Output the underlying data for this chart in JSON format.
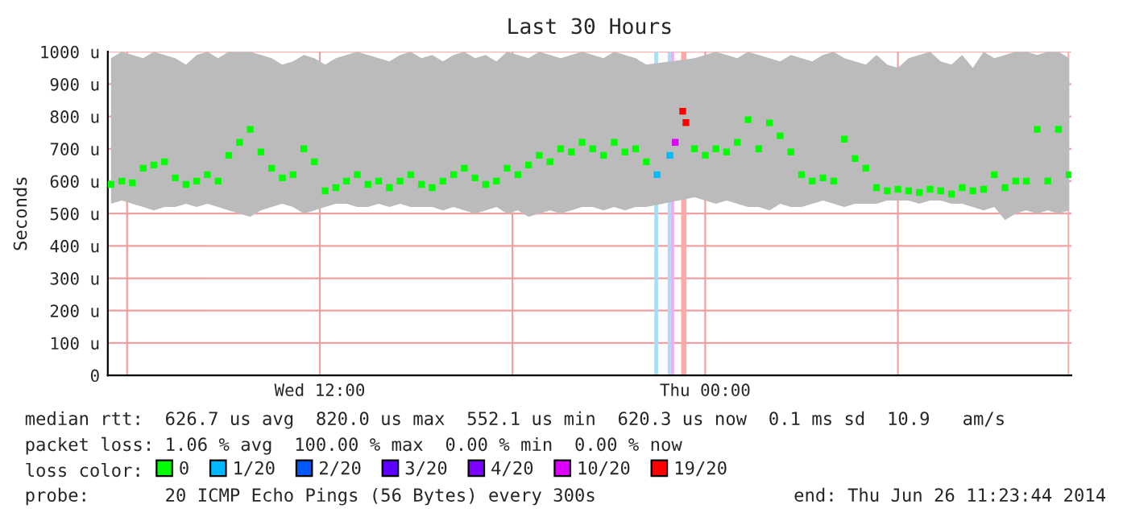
{
  "chart_data": {
    "type": "scatter",
    "title": "Last 30 Hours",
    "ylabel": "Seconds",
    "xlim": [
      "2014-06-25T05:24",
      "2014-06-26T11:24"
    ],
    "xticks": [
      {
        "value": "2014-06-25T06:00",
        "label": null
      },
      {
        "value": "2014-06-25T12:00",
        "label": "Wed 12:00"
      },
      {
        "value": "2014-06-25T18:00",
        "label": null
      },
      {
        "value": "2014-06-26T00:00",
        "label": "Thu 00:00"
      },
      {
        "value": "2014-06-26T06:00",
        "label": null
      }
    ],
    "ylim": [
      0,
      1000
    ],
    "yticks": [
      0,
      {
        "value": 100,
        "label": "100 u"
      },
      {
        "value": 200,
        "label": "200 u"
      },
      {
        "value": 300,
        "label": "300 u"
      },
      {
        "value": 400,
        "label": "400 u"
      },
      {
        "value": 500,
        "label": "500 u"
      },
      {
        "value": 600,
        "label": "600 u"
      },
      {
        "value": 700,
        "label": "700 u"
      },
      {
        "value": 800,
        "label": "800 u"
      },
      {
        "value": 900,
        "label": "900 u"
      },
      {
        "value": 1000,
        "label": "1000 u"
      }
    ],
    "grid": true,
    "marker": "square",
    "legend": "bottom",
    "legend_title": "loss color:",
    "series": [
      {
        "name": "0",
        "color": "#00ff00",
        "x": [
          "2014-06-25T05:30",
          "2014-06-25T05:50",
          "2014-06-25T06:10",
          "2014-06-25T06:30",
          "2014-06-25T06:50",
          "2014-06-25T07:10",
          "2014-06-25T07:30",
          "2014-06-25T07:50",
          "2014-06-25T08:10",
          "2014-06-25T08:30",
          "2014-06-25T08:50",
          "2014-06-25T09:10",
          "2014-06-25T09:30",
          "2014-06-25T09:50",
          "2014-06-25T10:10",
          "2014-06-25T10:30",
          "2014-06-25T10:50",
          "2014-06-25T11:10",
          "2014-06-25T11:30",
          "2014-06-25T11:50",
          "2014-06-25T12:10",
          "2014-06-25T12:30",
          "2014-06-25T12:50",
          "2014-06-25T13:10",
          "2014-06-25T13:30",
          "2014-06-25T13:50",
          "2014-06-25T14:10",
          "2014-06-25T14:30",
          "2014-06-25T14:50",
          "2014-06-25T15:10",
          "2014-06-25T15:30",
          "2014-06-25T15:50",
          "2014-06-25T16:10",
          "2014-06-25T16:30",
          "2014-06-25T16:50",
          "2014-06-25T17:10",
          "2014-06-25T17:30",
          "2014-06-25T17:50",
          "2014-06-25T18:10",
          "2014-06-25T18:30",
          "2014-06-25T18:50",
          "2014-06-25T19:10",
          "2014-06-25T19:30",
          "2014-06-25T19:50",
          "2014-06-25T20:10",
          "2014-06-25T20:30",
          "2014-06-25T20:50",
          "2014-06-25T21:10",
          "2014-06-25T21:30",
          "2014-06-25T21:50",
          "2014-06-25T22:10",
          "2014-06-25T23:40",
          "2014-06-26T00:00",
          "2014-06-26T00:20",
          "2014-06-26T00:40",
          "2014-06-26T01:00",
          "2014-06-26T01:20",
          "2014-06-26T01:40",
          "2014-06-26T02:00",
          "2014-06-26T02:20",
          "2014-06-26T02:40",
          "2014-06-26T03:00",
          "2014-06-26T03:20",
          "2014-06-26T03:40",
          "2014-06-26T04:00",
          "2014-06-26T04:20",
          "2014-06-26T04:40",
          "2014-06-26T05:00",
          "2014-06-26T05:20",
          "2014-06-26T05:40",
          "2014-06-26T06:00",
          "2014-06-26T06:20",
          "2014-06-26T06:40",
          "2014-06-26T07:00",
          "2014-06-26T07:20",
          "2014-06-26T07:40",
          "2014-06-26T08:00",
          "2014-06-26T08:20",
          "2014-06-26T08:40",
          "2014-06-26T09:00",
          "2014-06-26T09:20",
          "2014-06-26T09:40",
          "2014-06-26T10:00",
          "2014-06-26T10:20",
          "2014-06-26T10:40",
          "2014-06-26T11:00",
          "2014-06-26T11:20"
        ],
        "values": [
          590,
          600,
          595,
          640,
          650,
          660,
          610,
          590,
          600,
          620,
          600,
          680,
          720,
          760,
          690,
          640,
          610,
          620,
          700,
          660,
          570,
          580,
          600,
          620,
          590,
          600,
          580,
          600,
          620,
          590,
          580,
          600,
          620,
          640,
          610,
          590,
          600,
          640,
          620,
          650,
          680,
          660,
          700,
          690,
          720,
          700,
          680,
          720,
          690,
          700,
          660,
          700,
          680,
          700,
          690,
          720,
          790,
          700,
          780,
          740,
          690,
          620,
          600,
          610,
          600,
          730,
          670,
          640,
          580,
          570,
          575,
          570,
          565,
          575,
          570,
          560,
          580,
          570,
          575,
          620,
          580,
          600,
          600,
          760,
          600,
          760,
          620
        ],
        "lower": [
          530,
          540,
          530,
          520,
          510,
          520,
          520,
          530,
          520,
          530,
          520,
          510,
          500,
          490,
          510,
          520,
          530,
          520,
          500,
          510,
          520,
          530,
          530,
          520,
          520,
          530,
          520,
          530,
          520,
          520,
          520,
          510,
          520,
          510,
          500,
          510,
          520,
          500,
          510,
          490,
          500,
          510,
          500,
          510,
          520,
          520,
          510,
          520,
          510,
          520,
          520,
          550,
          540,
          530,
          540,
          530,
          520,
          520,
          510,
          530,
          520,
          520,
          530,
          540,
          530,
          520,
          530,
          530,
          530,
          540,
          540,
          540,
          530,
          540,
          540,
          530,
          530,
          520,
          510,
          520,
          480,
          500,
          510,
          500,
          510,
          500,
          510
        ],
        "upper": [
          980,
          1000,
          990,
          980,
          1000,
          990,
          980,
          960,
          990,
          1000,
          980,
          1000,
          1000,
          1000,
          990,
          980,
          960,
          970,
          990,
          980,
          960,
          980,
          990,
          1000,
          990,
          980,
          970,
          990,
          1000,
          980,
          990,
          970,
          990,
          1000,
          980,
          990,
          970,
          1000,
          990,
          980,
          1000,
          990,
          980,
          990,
          1000,
          990,
          980,
          1000,
          990,
          980,
          960,
          980,
          990,
          1000,
          990,
          980,
          1000,
          990,
          980,
          970,
          990,
          980,
          970,
          990,
          1000,
          980,
          970,
          960,
          990,
          960,
          950,
          980,
          990,
          1000,
          970,
          960,
          990,
          950,
          1000,
          980,
          990,
          1000,
          1000,
          990,
          1000,
          1000,
          980
        ]
      },
      {
        "name": "1/20",
        "color": "#00b8ff",
        "x": [
          "2014-06-25T22:30",
          "2014-06-25T22:54"
        ],
        "values": [
          620,
          680
        ]
      },
      {
        "name": "2/20",
        "color": "#0059ff"
      },
      {
        "name": "3/20",
        "color": "#5e00ff"
      },
      {
        "name": "4/20",
        "color": "#7e00ff"
      },
      {
        "name": "10/20",
        "color": "#dd00ff",
        "x": [
          "2014-06-25T23:04"
        ],
        "values": [
          720
        ]
      },
      {
        "name": "19/20",
        "color": "#ff0000",
        "x": [
          "2014-06-25T23:18",
          "2014-06-25T23:24"
        ],
        "values": [
          816,
          781
        ]
      }
    ],
    "bands": [
      {
        "axis": "x",
        "from": "2014-06-25T22:25",
        "to": "2014-06-25T22:32",
        "color": "#a8ddf5"
      },
      {
        "axis": "x",
        "from": "2014-06-25T22:50",
        "to": "2014-06-25T22:56",
        "color": "#a8ddf5"
      },
      {
        "axis": "x",
        "from": "2014-06-25T22:56",
        "to": "2014-06-25T23:02",
        "color": "#f2aaf8"
      },
      {
        "axis": "x",
        "from": "2014-06-25T23:15",
        "to": "2014-06-25T23:25",
        "color": "#ffaaaa"
      },
      {
        "axis": "x",
        "from": "2014-06-26T11:17",
        "to": "2014-06-26T11:20",
        "color": "#ffaaaa"
      }
    ],
    "annotations": [
      "median rtt:  626.7 us avg  820.0 us max  552.1 us min  620.3 us now  0.1 ms sd  10.9   am/s",
      "packet loss: 1.06 % avg  100.00 % max  0.00 % min  0.00 % now",
      "probe:       20 ICMP Echo Pings (56 Bytes) every 300s",
      "end: Thu Jun 26 11:23:44 2014"
    ]
  }
}
